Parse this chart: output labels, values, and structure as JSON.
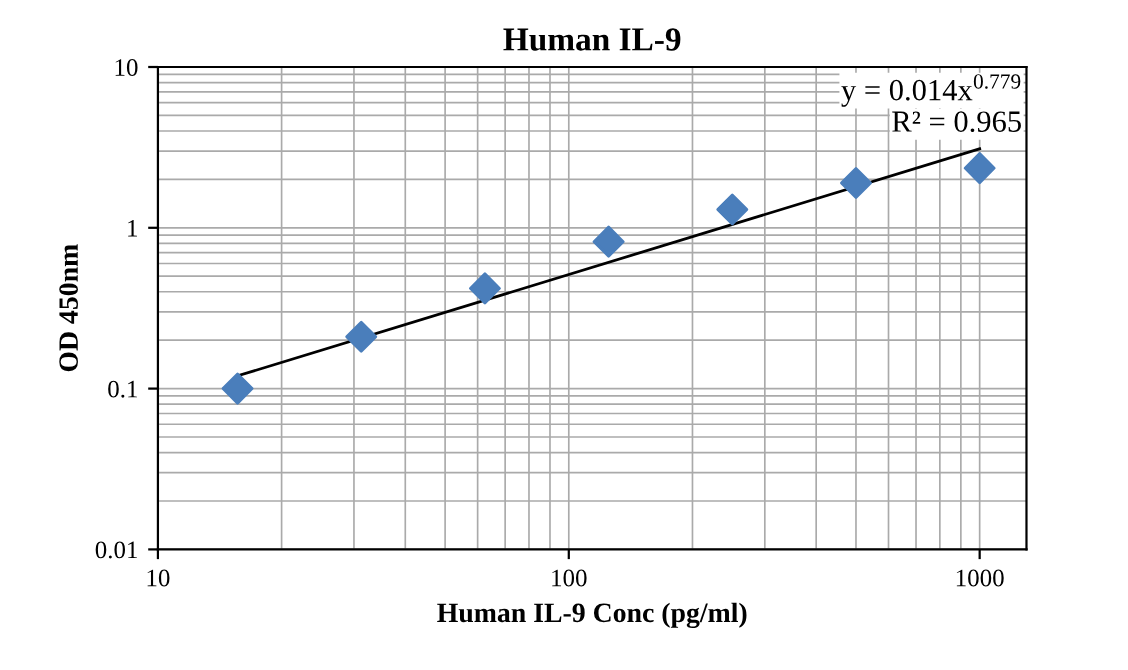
{
  "chart_data": {
    "type": "scatter",
    "title": "Human IL-9",
    "xlabel": "Human IL-9 Conc (pg/ml)",
    "ylabel": "OD 450nm",
    "x": [
      15.625,
      31.25,
      62.5,
      125,
      250,
      500,
      1000
    ],
    "log": "xy",
    "grid": true,
    "marker": "diamond",
    "legend": false,
    "series": [
      {
        "color": "#4a7ebb",
        "values": [
          0.1,
          0.21,
          0.42,
          0.82,
          1.3,
          1.9,
          2.35
        ]
      },
      {
        "type": "line",
        "color": "#000000",
        "x": [
          15.625,
          1000
        ],
        "values": [
          0.12,
          3.1
        ],
        "marker": "none",
        "line_style": "solid"
      }
    ],
    "xlim": [
      10,
      1300
    ],
    "ylim": [
      0.01,
      10
    ],
    "xticks": [
      10,
      100,
      1000
    ],
    "yticks": [
      0.01,
      0.1,
      1,
      10
    ],
    "annotations": [
      "y = 0.014x$^{0.779}$",
      "R² = 0.965"
    ]
  }
}
